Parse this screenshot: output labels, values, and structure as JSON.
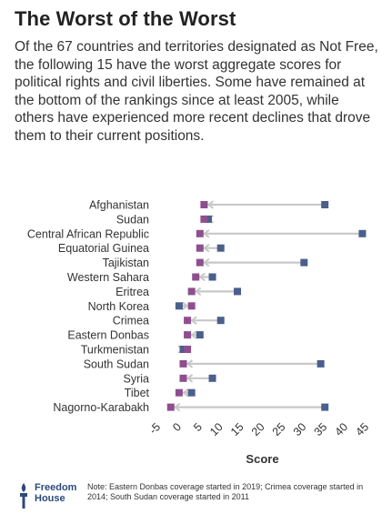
{
  "title": "The Worst of the Worst",
  "subtitle": "Of the 67 countries and territories designated as Not Free, the following 15 have the worst aggregate scores for political rights and civil liberties. Some have remained at the bottom of the rankings since at least 2005, while others have experienced more recent declines that drove them to their current positions.",
  "note": "Note: Eastern Donbas coverage started in 2019; Crimea coverage started in 2014; South Sudan coverage started in 2011",
  "logo": {
    "line1": "Freedom",
    "line2": "House"
  },
  "colors": {
    "earlier": "#4a5f8c",
    "current": "#8e4f8f",
    "arrow": "#c8c8c8",
    "axis_text": "#333333",
    "logo": "#2d4a7b"
  },
  "chart_data": {
    "type": "dot-arrow",
    "xlabel": "Score",
    "xlim": [
      -5,
      45
    ],
    "xticks": [
      -5,
      0,
      5,
      10,
      15,
      20,
      25,
      30,
      35,
      40,
      45
    ],
    "categories": [
      "Afghanistan",
      "Sudan",
      "Central African Republic",
      "Equatorial Guinea",
      "Tajikistan",
      "Western Sahara",
      "Eritrea",
      "North Korea",
      "Crimea",
      "Eastern Donbas",
      "Turkmenistan",
      "South Sudan",
      "Syria",
      "Tibet",
      "Nagorno-Karabakh"
    ],
    "series": [
      {
        "values": [
          35,
          7,
          44,
          10,
          30,
          8,
          14,
          0,
          10,
          5,
          1,
          34,
          8,
          3,
          35
        ]
      },
      {
        "values": [
          6,
          6,
          5,
          5,
          5,
          4,
          3,
          3,
          2,
          2,
          2,
          1,
          1,
          0,
          -2
        ]
      }
    ]
  }
}
